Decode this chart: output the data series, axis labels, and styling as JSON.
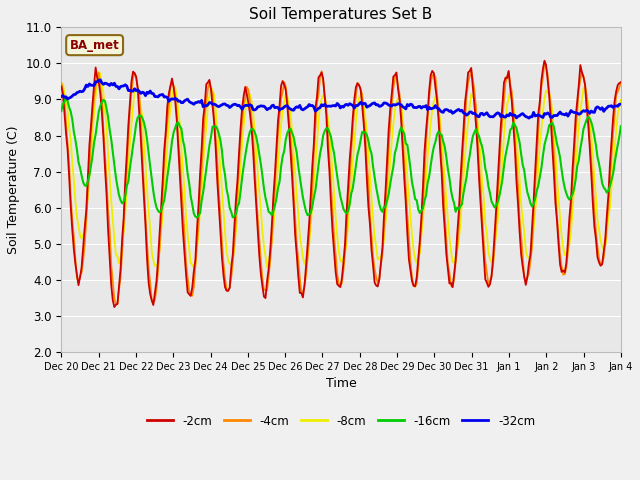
{
  "title": "Soil Temperatures Set B",
  "xlabel": "Time",
  "ylabel": "Soil Temperature (C)",
  "ylim": [
    2.0,
    11.0
  ],
  "yticks": [
    2.0,
    3.0,
    4.0,
    5.0,
    6.0,
    7.0,
    8.0,
    9.0,
    10.0,
    11.0
  ],
  "label_box_text": "BA_met",
  "legend_labels": [
    "-2cm",
    "-4cm",
    "-8cm",
    "-16cm",
    "-32cm"
  ],
  "line_colors": [
    "#cc0000",
    "#ff8800",
    "#eeee00",
    "#00cc00",
    "#0000ee"
  ],
  "line_widths": [
    1.3,
    1.3,
    1.3,
    1.5,
    2.0
  ],
  "x_tick_labels": [
    "Dec 20",
    "Dec 21",
    "Dec 22",
    "Dec 23",
    "Dec 24",
    "Dec 25",
    "Dec 26",
    "Dec 27",
    "Dec 28",
    "Dec 29",
    "Dec 30",
    "Dec 31",
    "Jan 1",
    "Jan 2",
    "Jan 3",
    "Jan 4"
  ],
  "title_fontsize": 11,
  "fig_facecolor": "#f0f0f0",
  "axes_facecolor": "#e8e8e8",
  "grid_color": "#ffffff",
  "annotation_facecolor": "#f5f5dc",
  "annotation_edgecolor": "#8B6914",
  "annotation_textcolor": "#8B0000"
}
